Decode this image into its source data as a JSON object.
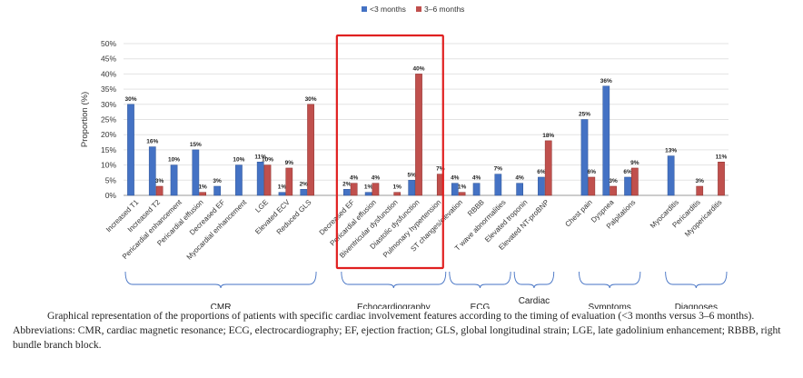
{
  "chart_data": {
    "type": "bar",
    "ylabel": "Proportion (%)",
    "ylim": [
      0,
      50
    ],
    "yticks": [
      "0%",
      "5%",
      "10%",
      "15%",
      "20%",
      "25%",
      "30%",
      "35%",
      "40%",
      "45%",
      "50%"
    ],
    "legend": {
      "placement": "top-center"
    },
    "colors": {
      "lt3": "#4472c4",
      "m36": "#c0504d",
      "highlight": "#e02020",
      "bracket": "#4472c4"
    },
    "series": [
      {
        "name": "<3 months",
        "key": "lt3"
      },
      {
        "name": "3–6 months",
        "key": "m36"
      }
    ],
    "categories": [
      {
        "label": "Increased T1",
        "lt3": 30,
        "m36": null,
        "lt3_label": "30%",
        "m36_label": ""
      },
      {
        "label": "Increased T2",
        "lt3": 16,
        "m36": 3,
        "lt3_label": "16%",
        "m36_label": "3%"
      },
      {
        "label": "Pericardial enhancement",
        "lt3": 10,
        "m36": null,
        "lt3_label": "10%",
        "m36_label": ""
      },
      {
        "label": "Pericardial effusion",
        "lt3": 15,
        "m36": 1,
        "lt3_label": "15%",
        "m36_label": "1%"
      },
      {
        "label": "Decreased EF",
        "lt3": 3,
        "m36": null,
        "lt3_label": "3%",
        "m36_label": ""
      },
      {
        "label": "Myocardial enhancement",
        "lt3": 10,
        "m36": null,
        "lt3_label": "10%",
        "m36_label": ""
      },
      {
        "label": "LGE",
        "lt3": 11,
        "m36": 10,
        "lt3_label": "11%",
        "m36_label": "10%"
      },
      {
        "label": "Elevated ECV",
        "lt3": 1,
        "m36": 9,
        "lt3_label": "1%",
        "m36_label": "9%"
      },
      {
        "label": "Reduced GLS",
        "lt3": 2,
        "m36": 30,
        "lt3_label": "2%",
        "m36_label": "30%"
      },
      {
        "gap": true
      },
      {
        "label": "Decreased EF",
        "lt3": 2,
        "m36": 4,
        "lt3_label": "2%",
        "m36_label": "4%"
      },
      {
        "label": "Pericardial effusion",
        "lt3": 1,
        "m36": 4,
        "lt3_label": "1%",
        "m36_label": "4%"
      },
      {
        "label": "Biventricular dysfunction",
        "lt3": null,
        "m36": 1,
        "lt3_label": "",
        "m36_label": "1%"
      },
      {
        "label": "Diastolic dysfunction",
        "lt3": 5,
        "m36": 40,
        "lt3_label": "5%",
        "m36_label": "40%"
      },
      {
        "label": "Pulmonary hypertension",
        "lt3": null,
        "m36": 7,
        "lt3_label": "",
        "m36_label": "7%"
      },
      {
        "label": "ST changes/elevation",
        "lt3": 4,
        "m36": 1,
        "lt3_label": "4%",
        "m36_label": "1%"
      },
      {
        "label": "RBBB",
        "lt3": 4,
        "m36": null,
        "lt3_label": "4%",
        "m36_label": ""
      },
      {
        "label": "T wave abnormalities",
        "lt3": 7,
        "m36": null,
        "lt3_label": "7%",
        "m36_label": ""
      },
      {
        "label": "Elevated troponin",
        "lt3": 4,
        "m36": null,
        "lt3_label": "4%",
        "m36_label": ""
      },
      {
        "label": "Elevated NT-proBNP",
        "lt3": 6,
        "m36": 18,
        "lt3_label": "6%",
        "m36_label": "18%"
      },
      {
        "gap": true
      },
      {
        "label": "Chest pain",
        "lt3": 25,
        "m36": 6,
        "lt3_label": "25%",
        "m36_label": "6%"
      },
      {
        "label": "Dyspnea",
        "lt3": 36,
        "m36": 3,
        "lt3_label": "36%",
        "m36_label": "3%"
      },
      {
        "label": "Palpitations",
        "lt3": 6,
        "m36": 9,
        "lt3_label": "6%",
        "m36_label": "9%"
      },
      {
        "gap": true
      },
      {
        "label": "Myocarditis",
        "lt3": 13,
        "m36": null,
        "lt3_label": "13%",
        "m36_label": ""
      },
      {
        "label": "Pericarditis",
        "lt3": null,
        "m36": 3,
        "lt3_label": "",
        "m36_label": "3%"
      },
      {
        "label": "Myopericarditis",
        "lt3": null,
        "m36": 11,
        "lt3_label": "",
        "m36_label": "11%"
      }
    ],
    "groups": [
      {
        "name": "CMR",
        "first": 0,
        "last": 8
      },
      {
        "name": "Echocardiography",
        "first": 10,
        "last": 14
      },
      {
        "name": "ECG",
        "first": 15,
        "last": 17
      },
      {
        "name": "Cardiac\nBiomarkers",
        "first": 18,
        "last": 19
      },
      {
        "name": "Symptoms",
        "first": 21,
        "last": 23
      },
      {
        "name": "Diagnoses",
        "first": 25,
        "last": 27
      }
    ],
    "highlight": {
      "first": 10,
      "last": 14
    }
  },
  "caption": {
    "line1": "Graphical representation of the proportions of patients with specific cardiac involvement features according to the timing of evaluation (<3 months versus 3–6 months).",
    "line2": "Abbreviations: CMR, cardiac magnetic resonance; ECG, electrocardiography; EF, ejection fraction; GLS, global longitudinal strain; LGE, late gadolinium enhancement; RBBB, right bundle branch block."
  }
}
